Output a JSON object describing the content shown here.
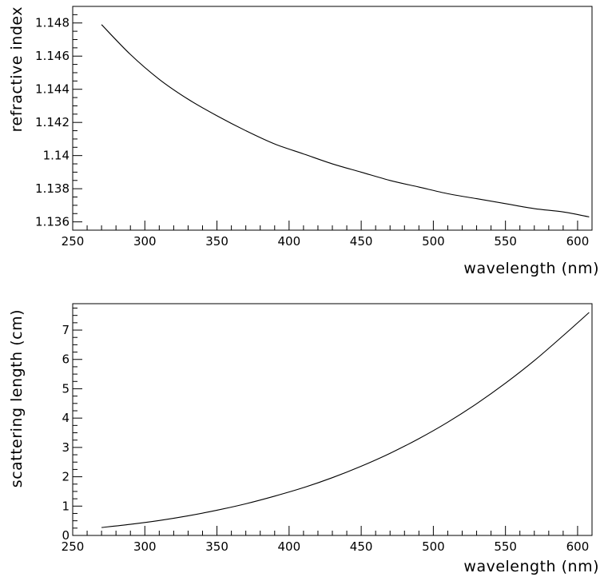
{
  "chart_data": [
    {
      "type": "line",
      "title": "",
      "xlabel": "wavelength (nm)",
      "ylabel": "refractive index",
      "xlim": [
        250,
        610
      ],
      "ylim": [
        1.1355,
        1.149
      ],
      "xticks": [
        250,
        300,
        350,
        400,
        450,
        500,
        550,
        600
      ],
      "xtick_labels": [
        "250",
        "300",
        "350",
        "400",
        "450",
        "500",
        "550",
        "600"
      ],
      "yticks": [
        1.136,
        1.138,
        1.14,
        1.142,
        1.144,
        1.146,
        1.148
      ],
      "ytick_labels": [
        "1.136",
        "1.138",
        "1.14",
        "1.142",
        "1.144",
        "1.146",
        "1.148"
      ],
      "grid": false,
      "series": [
        {
          "x": [
            270,
            290,
            310,
            330,
            350,
            370,
            390,
            410,
            430,
            450,
            470,
            490,
            510,
            530,
            550,
            570,
            590,
            608
          ],
          "y": [
            1.1479,
            1.1461,
            1.1446,
            1.1434,
            1.1424,
            1.1415,
            1.1407,
            1.1401,
            1.1395,
            1.139,
            1.1385,
            1.1381,
            1.1377,
            1.1374,
            1.1371,
            1.1368,
            1.1366,
            1.1363
          ]
        }
      ]
    },
    {
      "type": "line",
      "title": "",
      "xlabel": "wavelength (nm)",
      "ylabel": "scattering length (cm)",
      "xlim": [
        250,
        610
      ],
      "ylim": [
        0,
        7.9
      ],
      "xticks": [
        250,
        300,
        350,
        400,
        450,
        500,
        550,
        600
      ],
      "xtick_labels": [
        "250",
        "300",
        "350",
        "400",
        "450",
        "500",
        "550",
        "600"
      ],
      "yticks": [
        0,
        1,
        2,
        3,
        4,
        5,
        6,
        7
      ],
      "ytick_labels": [
        "0",
        "1",
        "2",
        "3",
        "4",
        "5",
        "6",
        "7"
      ],
      "grid": false,
      "series": [
        {
          "x": [
            270,
            290,
            310,
            330,
            350,
            370,
            390,
            410,
            430,
            450,
            470,
            490,
            510,
            530,
            550,
            570,
            590,
            608
          ],
          "y": [
            0.27,
            0.38,
            0.51,
            0.67,
            0.86,
            1.08,
            1.34,
            1.63,
            1.97,
            2.36,
            2.8,
            3.3,
            3.86,
            4.49,
            5.19,
            5.96,
            6.81,
            7.6
          ]
        }
      ]
    }
  ]
}
